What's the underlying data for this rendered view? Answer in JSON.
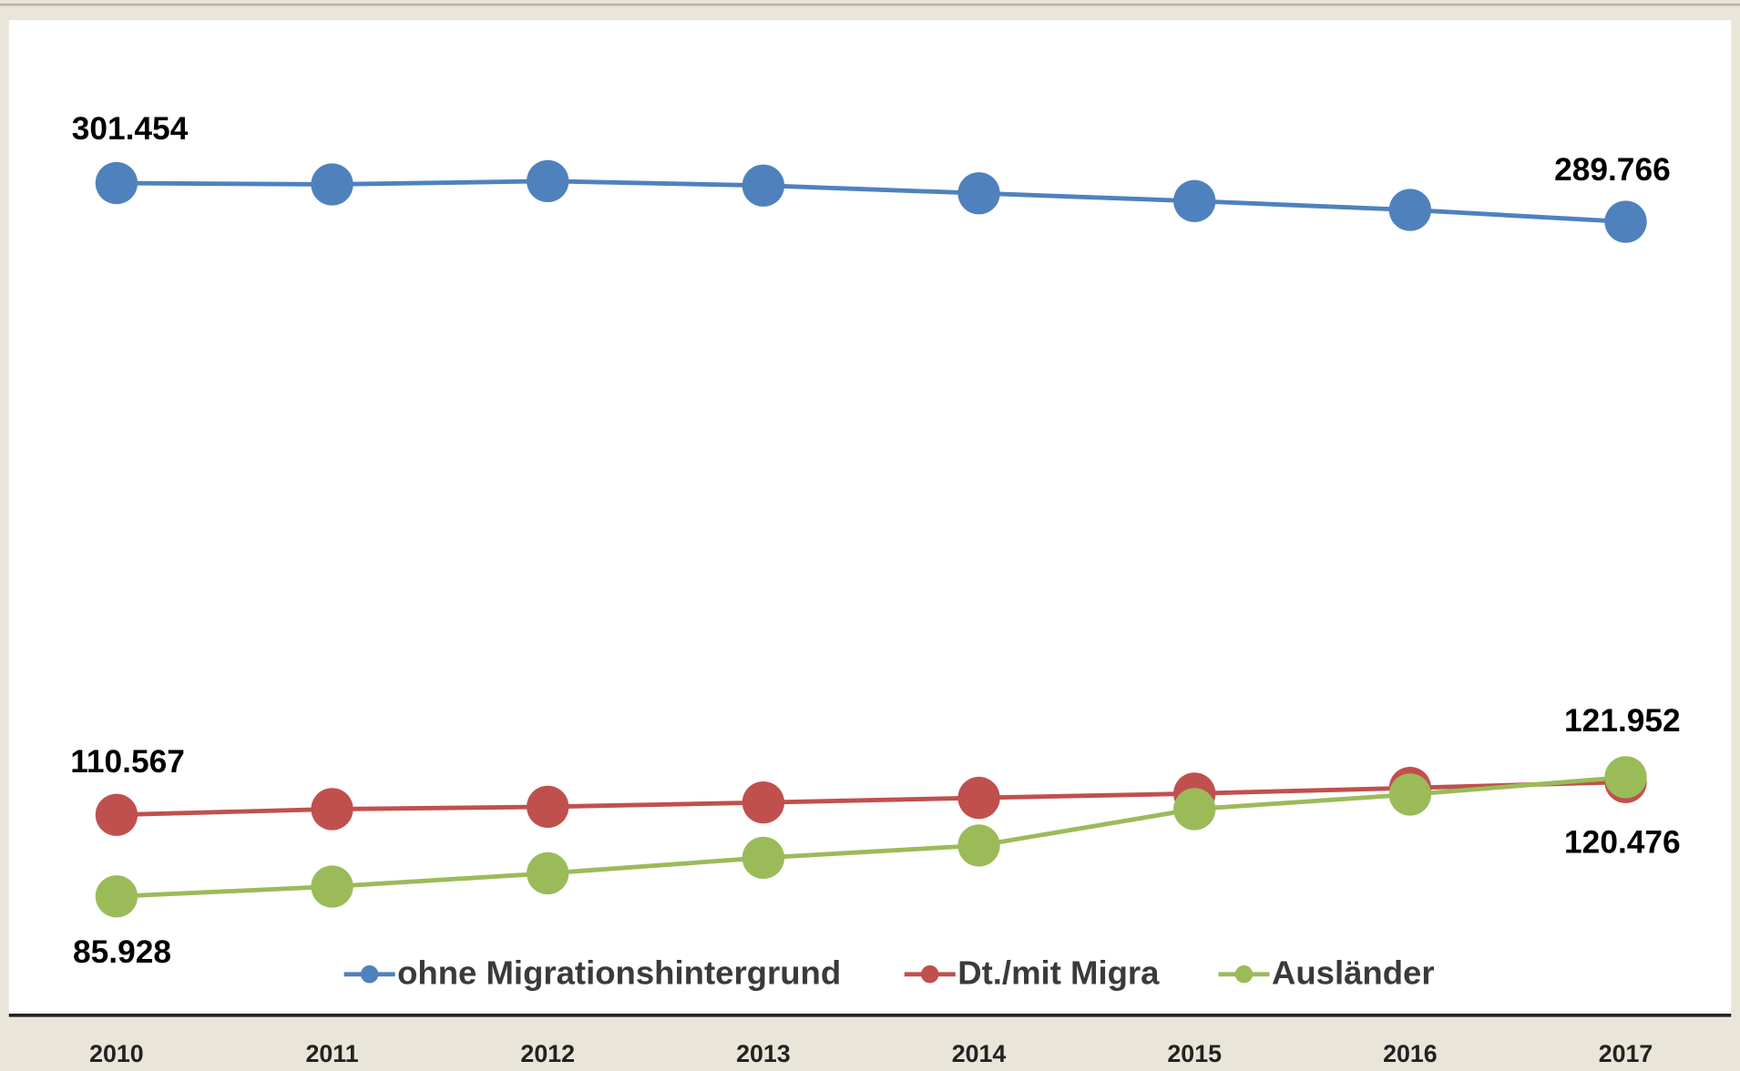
{
  "chart_data": {
    "type": "line",
    "categories": [
      "2010",
      "2011",
      "2012",
      "2013",
      "2014",
      "2015",
      "2016",
      "2017"
    ],
    "ylim": [
      50,
      350
    ],
    "legend": "bottom",
    "series": [
      {
        "name": "ohne Migrationshintergrund",
        "color": "#4f81bd",
        "values": [
          301.454,
          301.06,
          302.06,
          300.72,
          298.38,
          296.03,
          293.35,
          289.766
        ],
        "value_labels": [
          "301.454",
          null,
          null,
          null,
          null,
          null,
          null,
          "289.766"
        ]
      },
      {
        "name": "Dt./mit Migra",
        "color": "#c0504d",
        "values": [
          110.567,
          112.3,
          113.0,
          114.3,
          115.7,
          117.0,
          118.7,
          120.476
        ],
        "value_labels": [
          "110.567",
          null,
          null,
          null,
          null,
          null,
          null,
          "120.476"
        ]
      },
      {
        "name": "Ausländer",
        "color": "#9bbb59",
        "values": [
          85.928,
          88.9,
          92.9,
          97.6,
          101.3,
          112.3,
          116.7,
          121.952
        ],
        "value_labels": [
          "85.928",
          null,
          null,
          null,
          null,
          null,
          null,
          "121.952"
        ]
      }
    ]
  }
}
